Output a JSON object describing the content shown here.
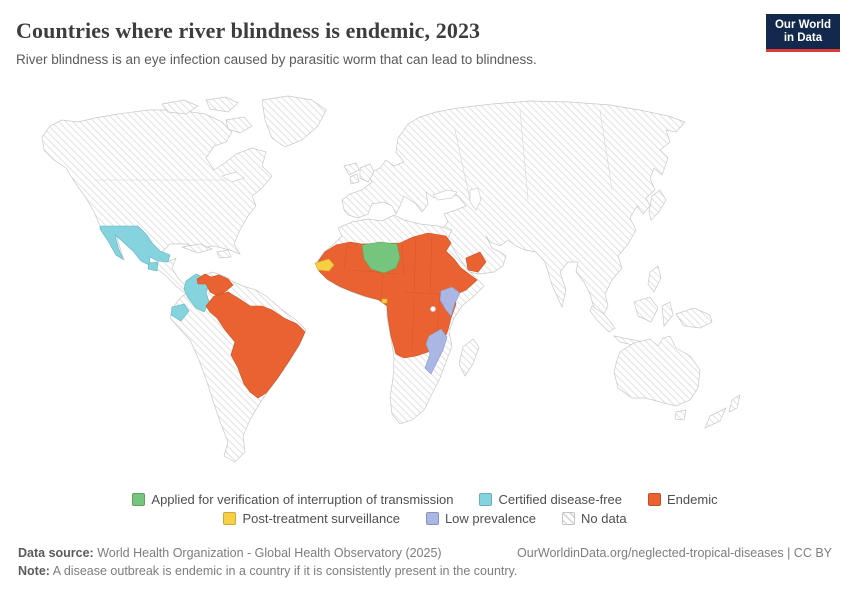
{
  "header": {
    "title": "Countries where river blindness is endemic, 2023",
    "subtitle": "River blindness is an eye infection caused by parasitic worm that can lead to blindness.",
    "logo": {
      "line1": "Our World",
      "line2": "in Data"
    }
  },
  "colors": {
    "green": "#76c57c",
    "cyan": "#84d3de",
    "orange": "#ea6231",
    "yellow": "#f7cf45",
    "purple": "#aab6e4",
    "navy": "#12294d",
    "red": "#dc3c34",
    "hatch_line": "#dadada",
    "map_border": "#c8c8c8"
  },
  "legend": {
    "items": [
      {
        "label": "Applied for verification of interruption of transmission",
        "color_key": "green",
        "swatch": "solid",
        "row": 0
      },
      {
        "label": "Certified disease-free",
        "color_key": "cyan",
        "swatch": "solid",
        "row": 0
      },
      {
        "label": "Endemic",
        "color_key": "orange",
        "swatch": "solid",
        "row": 0
      },
      {
        "label": "Post-treatment surveillance",
        "color_key": "yellow",
        "swatch": "solid",
        "row": 1
      },
      {
        "label": "Low prevalence",
        "color_key": "purple",
        "swatch": "solid",
        "row": 1
      },
      {
        "label": "No data",
        "color_key": null,
        "swatch": "hatched",
        "row": 1
      }
    ]
  },
  "map": {
    "type": "choropleth-world-map",
    "year": "2023",
    "assignments": {
      "applied_for_verification": [
        "Niger"
      ],
      "certified_disease_free": [
        "Mexico",
        "Guatemala",
        "Colombia",
        "Ecuador"
      ],
      "endemic": [
        "Venezuela",
        "Brazil",
        "Yemen",
        "West, Central and East African belt (Mali, Burkina Faso, Ghana, Nigeria, Cameroon, Chad, Sudan, South Sudan, Ethiopia, Uganda, DR Congo, Angola, Tanzania and neighbours)"
      ],
      "post_treatment_surveillance": [
        "Senegal",
        "Equatorial Guinea"
      ],
      "low_prevalence": [
        "Kenya",
        "Malawi",
        "Mozambique"
      ],
      "no_data": [
        "All other countries (shown hatched)"
      ]
    }
  },
  "footer": {
    "source_label": "Data source:",
    "source_text": " World Health Organization - Global Health Observatory (2025)",
    "link_text": "OurWorldinData.org/neglected-tropical-diseases | CC BY",
    "note_label": "Note:",
    "note_text": " A disease outbreak is endemic in a country if it is consistently present in the country."
  }
}
